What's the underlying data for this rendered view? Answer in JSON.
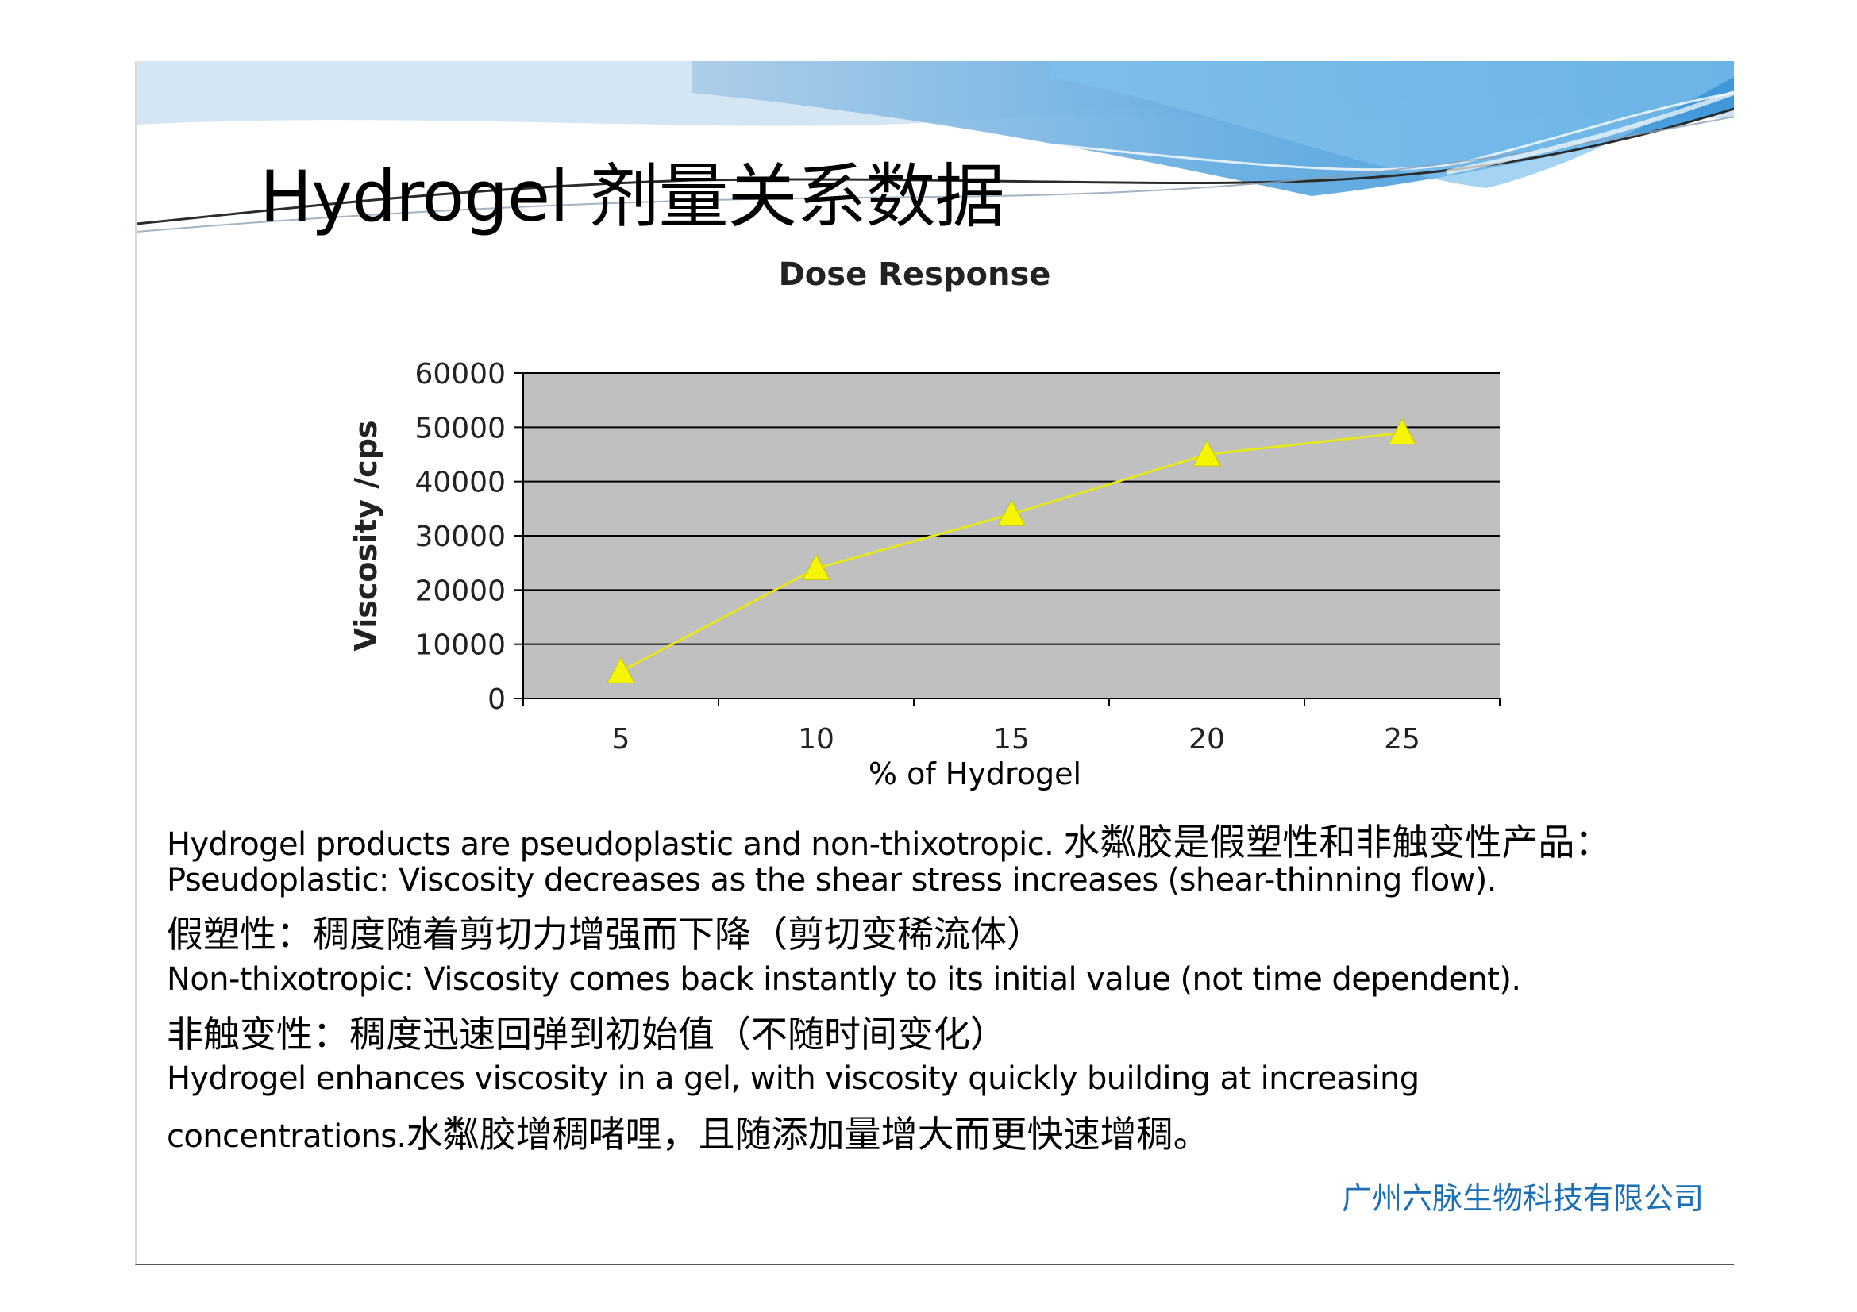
{
  "slide": {
    "title": "Hydrogel 剂量关系数据",
    "company": "广州六脉生物科技有限公司"
  },
  "chart_data": {
    "type": "line",
    "title": "Dose Response",
    "xlabel": "% of Hydrogel",
    "ylabel": "Viscosity /cps",
    "x": [
      5,
      10,
      15,
      20,
      25
    ],
    "series": [
      {
        "values": [
          5000,
          24000,
          34000,
          45000,
          49000
        ]
      }
    ],
    "ylim": [
      0,
      60000
    ],
    "yticks": [
      "0",
      "10000",
      "20000",
      "30000",
      "40000",
      "50000",
      "60000"
    ],
    "xticks": [
      "5",
      "10",
      "15",
      "20",
      "25"
    ],
    "marker": "triangle",
    "line_color": "#e6e61e",
    "marker_color": "#f5f500",
    "plot_background": "#c0c0c0",
    "grid": true
  },
  "body": {
    "line1_en": "Hydrogel products are pseudoplastic and non-thixotropic. ",
    "line1_zh": "水粼胶是假塑性和非触变性产品：",
    "line2_en": "Pseudoplastic: Viscosity decreases as the shear stress increases (shear-thinning flow).",
    "line3_zh": "假塑性：稠度随着剪切力增强而下降（剪切变稀流体）",
    "line4_en": "Non-thixotropic: Viscosity comes back instantly to its initial value (not time dependent).",
    "line5_zh": "非触变性：稠度迅速回弹到初始值（不随时间变化）",
    "line6_en": "Hydrogel enhances viscosity in a gel, with viscosity quickly building at increasing",
    "line7_en": "concentrations.",
    "line7_zh": "水粼胶增稠啫哩，且随添加量增大而更快速增稠。"
  }
}
